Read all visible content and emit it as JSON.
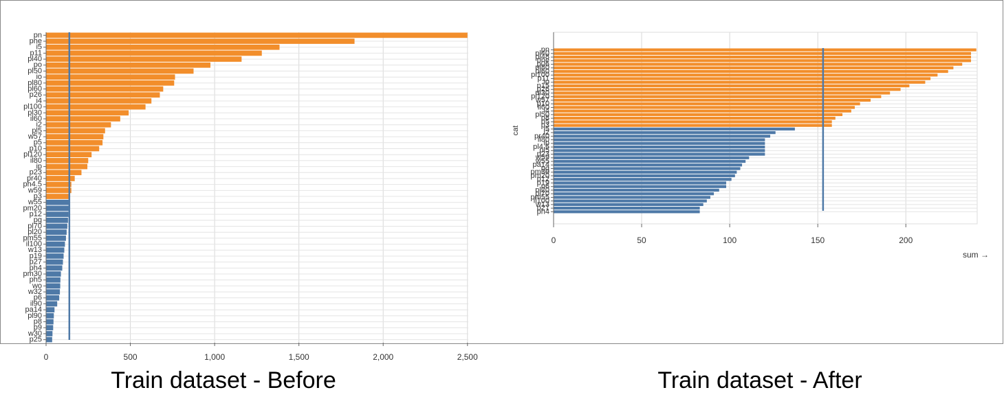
{
  "chart_data": [
    {
      "type": "hbar",
      "title": "Train dataset - Before",
      "categories": [
        "pn",
        "phe",
        "i5",
        "p11",
        "pl40",
        "po",
        "pl50",
        "io",
        "pl80",
        "pl60",
        "p26",
        "i4",
        "pl100",
        "pl30",
        "il60",
        "i2",
        "pl5",
        "w57",
        "p5",
        "p10",
        "pl120",
        "il80",
        "ip",
        "p23",
        "pr40",
        "ph4.5",
        "w59",
        "p3",
        "w55",
        "pm20",
        "p12",
        "pg",
        "pl70",
        "pl20",
        "pm55",
        "il100",
        "w13",
        "p19",
        "p27",
        "ph4",
        "pm30",
        "ph5",
        "wo",
        "w32",
        "p6",
        "il90",
        "pa14",
        "pl90",
        "p8",
        "p9",
        "w30",
        "p25"
      ],
      "series": [
        {
          "color": "#f28e2b",
          "values": [
            2500,
            1830,
            1385,
            1280,
            1160,
            975,
            875,
            765,
            760,
            695,
            675,
            625,
            590,
            490,
            440,
            385,
            350,
            340,
            335,
            315,
            270,
            250,
            245,
            210,
            170,
            150,
            150,
            135,
            null,
            null,
            null,
            null,
            null,
            null,
            null,
            null,
            null,
            null,
            null,
            null,
            null,
            null,
            null,
            null,
            null,
            null,
            null,
            null,
            null,
            null,
            null,
            null
          ]
        },
        {
          "color": "#4e79a7",
          "values": [
            null,
            null,
            null,
            null,
            null,
            null,
            null,
            null,
            null,
            null,
            null,
            null,
            null,
            null,
            null,
            null,
            null,
            null,
            null,
            null,
            null,
            null,
            null,
            null,
            null,
            null,
            null,
            null,
            138,
            135,
            133,
            130,
            126,
            122,
            118,
            112,
            108,
            104,
            100,
            96,
            88,
            85,
            84,
            82,
            78,
            66,
            50,
            46,
            44,
            42,
            38,
            36
          ]
        }
      ],
      "reference_line": 138,
      "reference_color": "#4e79a7",
      "xlim": [
        0,
        2505
      ],
      "xticks": [
        0,
        500,
        {
          "value": 1000,
          "label": "1,000"
        },
        {
          "value": 1500,
          "label": "1,500"
        },
        {
          "value": 2000,
          "label": "2,000"
        },
        {
          "value": 2500,
          "label": "2,500"
        }
      ],
      "grid": true
    },
    {
      "type": "hbar",
      "title": "Train dataset - After",
      "x_label": "sum →",
      "y_label": "cat",
      "categories": [
        "pn",
        "pl40",
        "pl48",
        "pne",
        "p06",
        "pl80",
        "pl60",
        "pl100",
        "p11",
        "io",
        "p15",
        "p26",
        "pl30",
        "pl120",
        "w57",
        "p10",
        "il60",
        "i4",
        "pl50",
        "p8",
        "p5",
        "p3",
        "i5",
        "i2",
        "pr40",
        "il80",
        "ip",
        "pl4.5",
        "pl5",
        "p23",
        "w59",
        "w55",
        "pa14",
        "pg",
        "pm30",
        "pm20",
        "p12",
        "p19",
        "p6",
        "pl20",
        "pl70",
        "pm55",
        "il100",
        "w13",
        "p27",
        "ph4"
      ],
      "series": [
        {
          "color": "#f28e2b",
          "values": [
            240,
            237,
            237,
            237,
            232,
            227,
            224,
            218,
            214,
            211,
            202,
            197,
            191,
            186,
            180,
            174,
            171,
            169,
            164,
            160,
            158,
            158,
            null,
            null,
            null,
            null,
            null,
            null,
            null,
            null,
            null,
            null,
            null,
            null,
            null,
            null,
            null,
            null,
            null,
            null,
            null,
            null,
            null,
            null,
            null,
            null
          ]
        },
        {
          "color": "#4e79a7",
          "values": [
            null,
            null,
            null,
            null,
            null,
            null,
            null,
            null,
            null,
            null,
            null,
            null,
            null,
            null,
            null,
            null,
            null,
            null,
            null,
            null,
            null,
            null,
            137,
            126,
            123,
            120,
            120,
            120,
            120,
            120,
            111,
            109,
            107,
            106,
            104,
            103,
            101,
            98,
            98,
            94,
            91,
            89,
            87,
            85,
            83,
            83
          ]
        }
      ],
      "reference_line": 153,
      "reference_color": "#4e79a7",
      "xlim": [
        0,
        240.5
      ],
      "xticks": [
        0,
        50,
        100,
        150,
        200
      ],
      "grid": true
    }
  ]
}
